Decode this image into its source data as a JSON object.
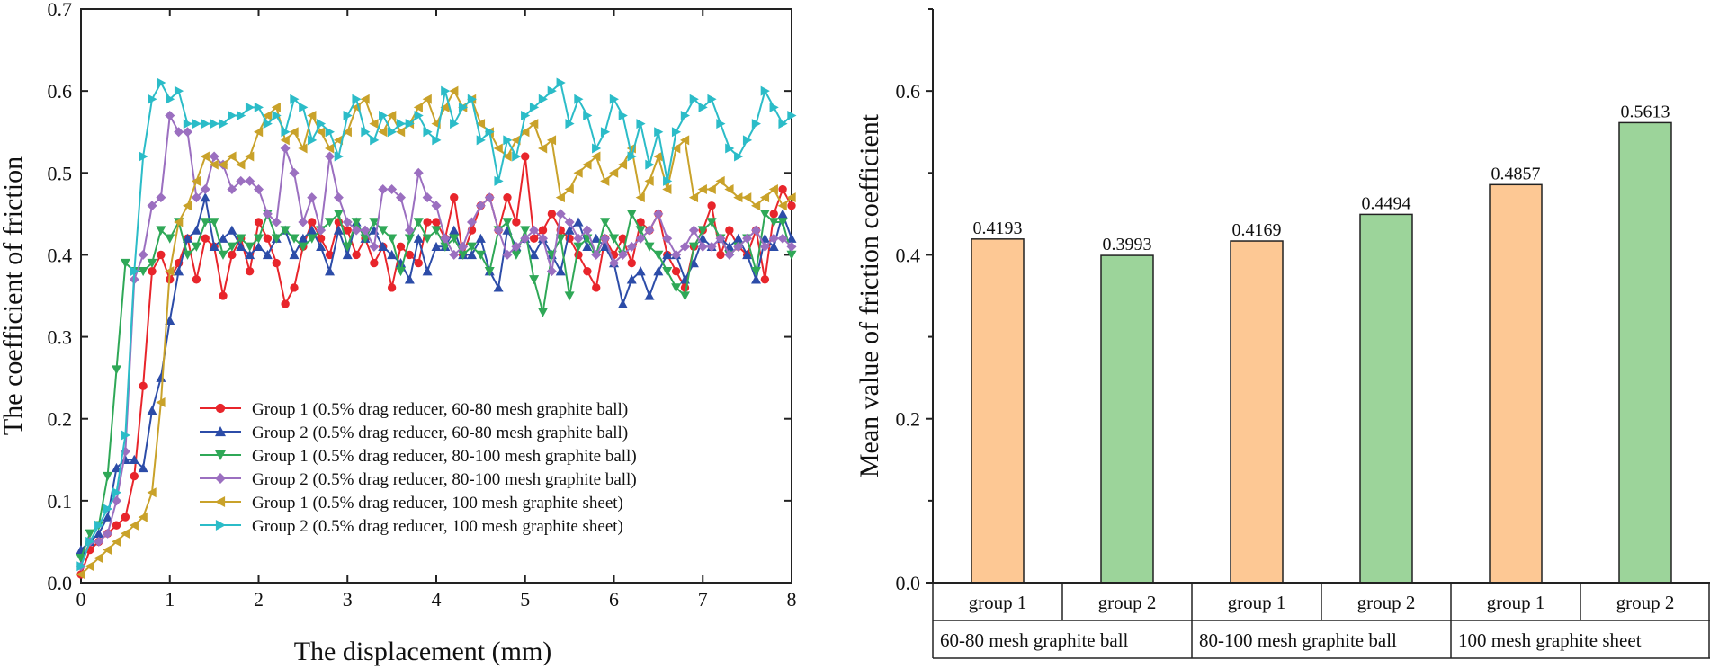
{
  "chart_data": [
    {
      "type": "line",
      "title": "",
      "xlabel": "The displacement (mm)",
      "ylabel": "The coefficient of friction",
      "xlim": [
        0,
        8
      ],
      "ylim": [
        0,
        0.7
      ],
      "xticks": [
        "0",
        "1",
        "2",
        "3",
        "4",
        "5",
        "6",
        "7",
        "8"
      ],
      "yticks": [
        "0.0",
        "0.1",
        "0.2",
        "0.3",
        "0.4",
        "0.5",
        "0.6",
        "0.7"
      ],
      "legend_position": "lower-right",
      "x": [
        0,
        0.1,
        0.2,
        0.3,
        0.4,
        0.5,
        0.6,
        0.7,
        0.8,
        0.9,
        1.0,
        1.1,
        1.2,
        1.3,
        1.4,
        1.5,
        1.6,
        1.7,
        1.8,
        1.9,
        2.0,
        2.1,
        2.2,
        2.3,
        2.4,
        2.5,
        2.6,
        2.7,
        2.8,
        2.9,
        3.0,
        3.1,
        3.2,
        3.3,
        3.4,
        3.5,
        3.6,
        3.7,
        3.8,
        3.9,
        4.0,
        4.1,
        4.2,
        4.3,
        4.4,
        4.5,
        4.6,
        4.7,
        4.8,
        4.9,
        5.0,
        5.1,
        5.2,
        5.3,
        5.4,
        5.5,
        5.6,
        5.7,
        5.8,
        5.9,
        6.0,
        6.1,
        6.2,
        6.3,
        6.4,
        6.5,
        6.6,
        6.7,
        6.8,
        6.9,
        7.0,
        7.1,
        7.2,
        7.3,
        7.4,
        7.5,
        7.6,
        7.7,
        7.8,
        7.9,
        8.0
      ],
      "series": [
        {
          "name": "Group 1 (0.5% drag reducer, 60-80 mesh graphite ball)",
          "color": "#e8252b",
          "marker": "circle",
          "values": [
            0.01,
            0.04,
            0.05,
            0.06,
            0.07,
            0.08,
            0.13,
            0.24,
            0.38,
            0.4,
            0.37,
            0.39,
            0.42,
            0.37,
            0.42,
            0.41,
            0.35,
            0.4,
            0.42,
            0.38,
            0.44,
            0.42,
            0.39,
            0.34,
            0.36,
            0.41,
            0.44,
            0.42,
            0.4,
            0.44,
            0.43,
            0.4,
            0.42,
            0.39,
            0.41,
            0.36,
            0.41,
            0.4,
            0.39,
            0.44,
            0.44,
            0.42,
            0.47,
            0.4,
            0.43,
            0.46,
            0.47,
            0.43,
            0.47,
            0.44,
            0.52,
            0.42,
            0.43,
            0.45,
            0.43,
            0.42,
            0.4,
            0.38,
            0.36,
            0.42,
            0.4,
            0.42,
            0.39,
            0.44,
            0.43,
            0.45,
            0.4,
            0.38,
            0.36,
            0.41,
            0.43,
            0.46,
            0.4,
            0.43,
            0.41,
            0.4,
            0.43,
            0.37,
            0.45,
            0.48,
            0.46
          ]
        },
        {
          "name": "Group 2 (0.5% drag reducer, 60-80 mesh graphite ball)",
          "color": "#2c4ca8",
          "marker": "triangle-up",
          "values": [
            0.04,
            0.05,
            0.06,
            0.08,
            0.14,
            0.15,
            0.15,
            0.14,
            0.21,
            0.25,
            0.32,
            0.38,
            0.42,
            0.43,
            0.47,
            0.41,
            0.42,
            0.43,
            0.41,
            0.4,
            0.41,
            0.4,
            0.42,
            0.43,
            0.4,
            0.42,
            0.43,
            0.41,
            0.38,
            0.43,
            0.4,
            0.44,
            0.42,
            0.43,
            0.41,
            0.4,
            0.39,
            0.37,
            0.42,
            0.38,
            0.41,
            0.41,
            0.43,
            0.4,
            0.4,
            0.42,
            0.38,
            0.36,
            0.43,
            0.41,
            0.42,
            0.4,
            0.42,
            0.4,
            0.38,
            0.43,
            0.44,
            0.41,
            0.42,
            0.41,
            0.39,
            0.34,
            0.37,
            0.38,
            0.35,
            0.38,
            0.4,
            0.4,
            0.37,
            0.39,
            0.42,
            0.41,
            0.42,
            0.41,
            0.42,
            0.4,
            0.37,
            0.42,
            0.41,
            0.45,
            0.42
          ]
        },
        {
          "name": "Group 1 (0.5% drag reducer, 80-100 mesh graphite ball)",
          "color": "#2fa857",
          "marker": "triangle-down",
          "values": [
            0.03,
            0.06,
            0.07,
            0.13,
            0.26,
            0.39,
            0.38,
            0.38,
            0.39,
            0.43,
            0.42,
            0.44,
            0.4,
            0.41,
            0.44,
            0.44,
            0.4,
            0.41,
            0.42,
            0.41,
            0.42,
            0.45,
            0.42,
            0.43,
            0.42,
            0.41,
            0.42,
            0.43,
            0.44,
            0.45,
            0.41,
            0.44,
            0.42,
            0.44,
            0.43,
            0.42,
            0.38,
            0.42,
            0.44,
            0.42,
            0.43,
            0.41,
            0.42,
            0.4,
            0.41,
            0.4,
            0.38,
            0.43,
            0.44,
            0.4,
            0.43,
            0.37,
            0.33,
            0.4,
            0.42,
            0.35,
            0.41,
            0.42,
            0.4,
            0.44,
            0.42,
            0.4,
            0.45,
            0.43,
            0.41,
            0.4,
            0.38,
            0.36,
            0.35,
            0.41,
            0.43,
            0.44,
            0.42,
            0.4,
            0.41,
            0.42,
            0.38,
            0.45,
            0.44,
            0.44,
            0.4
          ]
        },
        {
          "name": "Group 2 (0.5% drag reducer, 80-100 mesh graphite ball)",
          "color": "#9b6fc0",
          "marker": "diamond",
          "values": [
            0.02,
            0.05,
            0.05,
            0.06,
            0.1,
            0.16,
            0.37,
            0.4,
            0.46,
            0.47,
            0.57,
            0.55,
            0.55,
            0.47,
            0.48,
            0.52,
            0.51,
            0.48,
            0.49,
            0.49,
            0.48,
            0.45,
            0.44,
            0.53,
            0.5,
            0.44,
            0.47,
            0.43,
            0.52,
            0.47,
            0.44,
            0.43,
            0.43,
            0.41,
            0.48,
            0.48,
            0.47,
            0.43,
            0.5,
            0.47,
            0.46,
            0.42,
            0.4,
            0.41,
            0.44,
            0.46,
            0.47,
            0.43,
            0.4,
            0.41,
            0.42,
            0.43,
            0.42,
            0.38,
            0.45,
            0.44,
            0.42,
            0.43,
            0.4,
            0.42,
            0.39,
            0.4,
            0.41,
            0.42,
            0.43,
            0.45,
            0.42,
            0.4,
            0.41,
            0.43,
            0.41,
            0.41,
            0.42,
            0.4,
            0.41,
            0.42,
            0.43,
            0.41,
            0.42,
            0.42,
            0.41
          ]
        },
        {
          "name": "Group 1 (0.5% drag reducer, 100 mesh graphite sheet)",
          "color": "#c9a22a",
          "marker": "triangle-left",
          "values": [
            0.01,
            0.02,
            0.03,
            0.04,
            0.05,
            0.06,
            0.07,
            0.08,
            0.11,
            0.22,
            0.38,
            0.44,
            0.46,
            0.49,
            0.52,
            0.51,
            0.51,
            0.52,
            0.51,
            0.52,
            0.55,
            0.57,
            0.58,
            0.54,
            0.55,
            0.53,
            0.57,
            0.55,
            0.53,
            0.54,
            0.55,
            0.58,
            0.59,
            0.56,
            0.55,
            0.57,
            0.55,
            0.56,
            0.58,
            0.59,
            0.56,
            0.58,
            0.6,
            0.58,
            0.59,
            0.56,
            0.55,
            0.53,
            0.52,
            0.54,
            0.55,
            0.56,
            0.53,
            0.54,
            0.47,
            0.48,
            0.5,
            0.51,
            0.52,
            0.49,
            0.5,
            0.51,
            0.53,
            0.47,
            0.49,
            0.52,
            0.48,
            0.53,
            0.54,
            0.47,
            0.48,
            0.48,
            0.49,
            0.48,
            0.47,
            0.47,
            0.46,
            0.47,
            0.48,
            0.46,
            0.47
          ]
        },
        {
          "name": "Group 2 (0.5% drag reducer, 100 mesh graphite sheet)",
          "color": "#2bbcc8",
          "marker": "triangle-right",
          "values": [
            0.02,
            0.05,
            0.07,
            0.09,
            0.11,
            0.18,
            0.38,
            0.52,
            0.59,
            0.61,
            0.59,
            0.6,
            0.56,
            0.56,
            0.56,
            0.56,
            0.56,
            0.57,
            0.57,
            0.58,
            0.58,
            0.56,
            0.57,
            0.55,
            0.59,
            0.58,
            0.54,
            0.56,
            0.55,
            0.52,
            0.57,
            0.59,
            0.55,
            0.54,
            0.57,
            0.55,
            0.56,
            0.56,
            0.57,
            0.55,
            0.54,
            0.6,
            0.56,
            0.58,
            0.59,
            0.54,
            0.55,
            0.49,
            0.54,
            0.52,
            0.57,
            0.58,
            0.59,
            0.6,
            0.61,
            0.56,
            0.59,
            0.57,
            0.53,
            0.55,
            0.59,
            0.57,
            0.52,
            0.56,
            0.51,
            0.55,
            0.49,
            0.55,
            0.57,
            0.59,
            0.58,
            0.59,
            0.56,
            0.53,
            0.52,
            0.54,
            0.56,
            0.6,
            0.58,
            0.56,
            0.57
          ]
        }
      ]
    },
    {
      "type": "bar",
      "title": "",
      "xlabel": "",
      "ylabel": "Mean value of friction coefficient",
      "ylim": [
        0,
        0.7
      ],
      "yticks": [
        "0.0",
        "0.2",
        "0.4",
        "0.6"
      ],
      "categories": [
        "group 1",
        "group 2",
        "group 1",
        "group 2",
        "group 1",
        "group 2"
      ],
      "groups": [
        "60-80 mesh graphite ball",
        "80-100 mesh graphite ball",
        "100 mesh graphite sheet"
      ],
      "values": [
        0.4193,
        0.3993,
        0.4169,
        0.4494,
        0.4857,
        0.5613
      ],
      "value_labels": [
        "0.4193",
        "0.3993",
        "0.4169",
        "0.4494",
        "0.4857",
        "0.5613"
      ],
      "bar_colors": [
        "#fdc894",
        "#9cd49a",
        "#fdc894",
        "#9cd49a",
        "#fdc894",
        "#9cd49a"
      ]
    }
  ]
}
